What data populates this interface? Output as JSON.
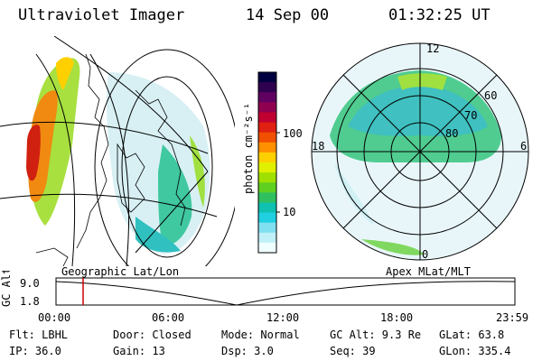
{
  "header": {
    "instrument": "Ultraviolet Imager",
    "date": "14 Sep 00",
    "time": "01:32:25 UT"
  },
  "colorbar": {
    "unit_label": "photon cm⁻²s⁻¹",
    "ticks": [
      "100",
      "10"
    ],
    "colors": [
      "#000040",
      "#300050",
      "#600060",
      "#900050",
      "#c00030",
      "#e02010",
      "#f05000",
      "#ff9000",
      "#ffd000",
      "#e0f000",
      "#a0e000",
      "#60d020",
      "#30c060",
      "#10c0b0",
      "#20d0e0",
      "#80e0f0",
      "#c0f0f8",
      "#f0ffff"
    ]
  },
  "left_panel": {
    "label": "Geographic Lat/Lon"
  },
  "right_panel": {
    "label": "Apex MLat/MLT",
    "mlt_labels": {
      "top": "12",
      "left": "18",
      "right": "6",
      "bottom": "0"
    },
    "lat_labels": [
      "60",
      "70",
      "80"
    ]
  },
  "altitude_plot": {
    "ylabel": "GC Alt",
    "yticks": [
      "9.0",
      "1.8"
    ],
    "xticks": [
      "00:00",
      "06:00",
      "12:00",
      "18:00",
      "23:59"
    ],
    "marker_time": "01:32:25"
  },
  "footer": {
    "row1": {
      "flt": "Flt: LBHL",
      "door": "Door: Closed",
      "mode": "Mode: Normal",
      "gcalt": "GC Alt: 9.3 Re",
      "glat": "GLat:  63.8"
    },
    "row2": {
      "ip": "IP: 36.0",
      "gain": "Gain: 13",
      "dsp": "Dsp:     3.0",
      "seq": "Seq: 39",
      "glon": "GLon: 335.4"
    }
  },
  "accent_colors": {
    "marker": "#cc0000"
  }
}
